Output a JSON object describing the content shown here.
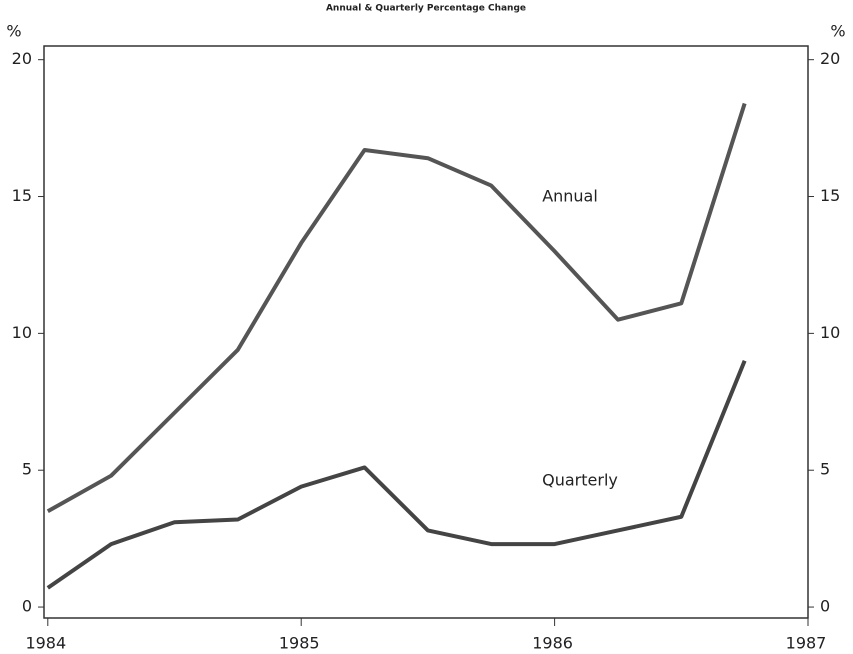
{
  "chart_data": {
    "type": "line",
    "title": "Annual & Quarterly Percentage Change",
    "ylabel": "%",
    "y2label": "%",
    "x": [
      1984,
      1984.25,
      1984.5,
      1984.75,
      1985,
      1985.25,
      1985.5,
      1985.75,
      1986,
      1986.25,
      1986.5,
      1986.75
    ],
    "series": [
      {
        "name": "Annual",
        "color": "#555555",
        "values": [
          3.5,
          4.8,
          7.1,
          9.4,
          13.3,
          16.7,
          16.4,
          15.4,
          13.0,
          10.5,
          11.1,
          18.4
        ]
      },
      {
        "name": "Quarterly",
        "color": "#444444",
        "values": [
          0.7,
          2.3,
          3.1,
          3.2,
          4.4,
          5.1,
          2.8,
          2.3,
          2.3,
          2.8,
          3.3,
          9.0
        ]
      }
    ],
    "xlim": [
      1983.985,
      1987.0
    ],
    "xticks": [
      1984,
      1985,
      1986,
      1987
    ],
    "ylim": [
      -0.4,
      20.5
    ],
    "yticks": [
      0,
      5,
      10,
      15,
      20
    ],
    "y2lim": [
      -0.4,
      20.5
    ],
    "y2ticks": [
      0,
      5,
      10,
      15,
      20
    ]
  }
}
